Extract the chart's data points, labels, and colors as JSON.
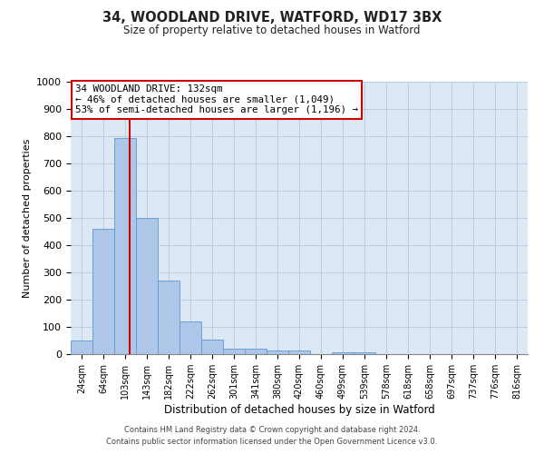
{
  "title": "34, WOODLAND DRIVE, WATFORD, WD17 3BX",
  "subtitle": "Size of property relative to detached houses in Watford",
  "xlabel": "Distribution of detached houses by size in Watford",
  "ylabel": "Number of detached properties",
  "bar_color": "#aec6e8",
  "bar_edge_color": "#5b9bd5",
  "background_color": "#ffffff",
  "plot_bg_color": "#dce9f5",
  "grid_color": "#b8cfe0",
  "bin_labels": [
    "24sqm",
    "64sqm",
    "103sqm",
    "143sqm",
    "182sqm",
    "222sqm",
    "262sqm",
    "301sqm",
    "341sqm",
    "380sqm",
    "420sqm",
    "460sqm",
    "499sqm",
    "539sqm",
    "578sqm",
    "618sqm",
    "658sqm",
    "697sqm",
    "737sqm",
    "776sqm",
    "816sqm"
  ],
  "bar_heights": [
    50,
    460,
    795,
    500,
    270,
    120,
    55,
    20,
    20,
    12,
    12,
    0,
    8,
    8,
    0,
    0,
    0,
    0,
    0,
    0,
    0
  ],
  "vline_color": "#cc0000",
  "ylim": [
    0,
    1000
  ],
  "yticks": [
    0,
    100,
    200,
    300,
    400,
    500,
    600,
    700,
    800,
    900,
    1000
  ],
  "annotation_title": "34 WOODLAND DRIVE: 132sqm",
  "annotation_line1": "← 46% of detached houses are smaller (1,049)",
  "annotation_line2": "53% of semi-detached houses are larger (1,196) →",
  "annotation_box_color": "#ffffff",
  "annotation_box_edge": "#cc0000",
  "footer1": "Contains HM Land Registry data © Crown copyright and database right 2024.",
  "footer2": "Contains public sector information licensed under the Open Government Licence v3.0."
}
